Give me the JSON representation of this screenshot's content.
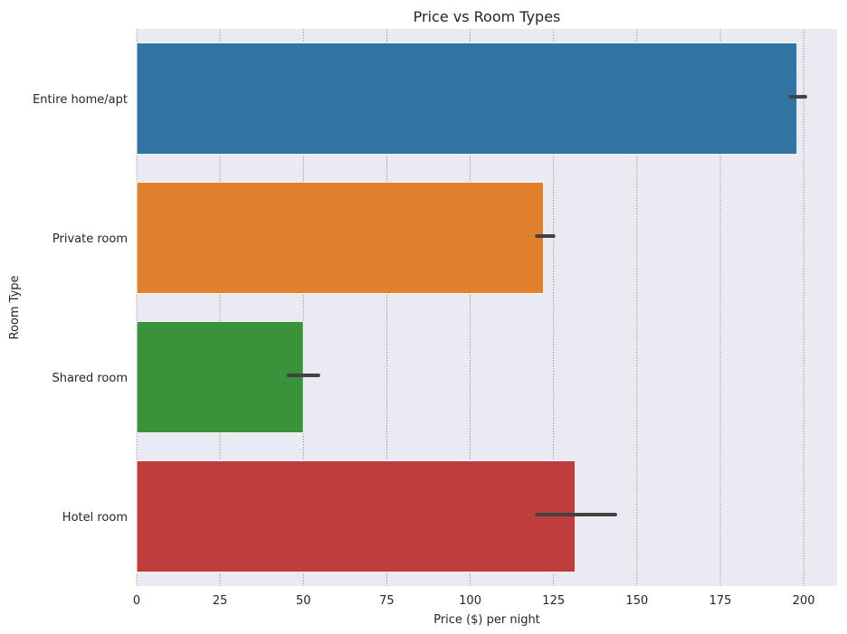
{
  "chart_data": {
    "type": "bar",
    "orientation": "horizontal",
    "title": "Price vs Room Types",
    "xlabel": "Price ($) per night",
    "ylabel": "Room Type",
    "xlim": [
      0,
      210
    ],
    "xticks": [
      0,
      25,
      50,
      75,
      100,
      125,
      150,
      175,
      200
    ],
    "xtick_labels": [
      "0",
      "25",
      "50",
      "75",
      "100",
      "125",
      "150",
      "175",
      "200"
    ],
    "grid": "vertical dotted",
    "categories": [
      "Entire home/apt",
      "Private room",
      "Shared room",
      "Hotel room"
    ],
    "values": [
      198,
      122,
      50,
      131.5
    ],
    "error_bars": [
      [
        196,
        200.5
      ],
      [
        120,
        125
      ],
      [
        45.5,
        54.5
      ],
      [
        120,
        143.5
      ]
    ],
    "colors": [
      "#3274a1",
      "#e1812c",
      "#3a923a",
      "#c03d3e"
    ]
  },
  "style": {
    "plot_background": "#eaeaf2",
    "grid_color": "#8c8c8c",
    "error_bar_color": "#424242"
  }
}
